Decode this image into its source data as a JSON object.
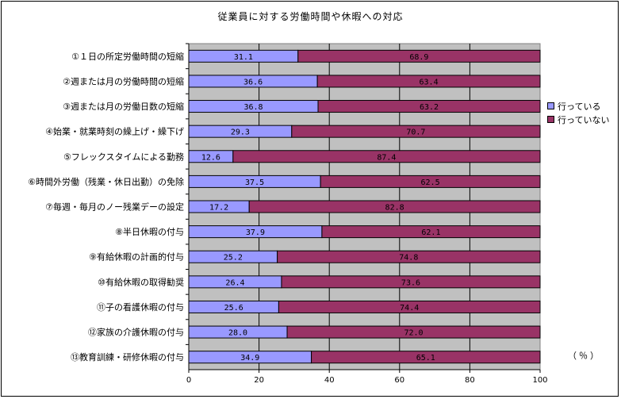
{
  "chart_data": {
    "type": "bar",
    "stacked": true,
    "orientation": "horizontal",
    "title": "従業員に対する労働時間や休暇への対応",
    "unit_label": "（％）",
    "categories": [
      "①１日の所定労働時間の短縮",
      "②週または月の労働時間の短縮",
      "③週または月の労働日数の短縮",
      "④始業・就業時刻の繰上げ・繰下げ",
      "⑤フレックスタイムによる勤務",
      "⑥時間外労働（残業・休日出勤）の免除",
      "⑦毎週・毎月のノー残業デーの設定",
      "⑧半日休暇の付与",
      "⑨有給休暇の計画的付与",
      "⑩有給休暇の取得勧奨",
      "⑪子の看護休暇の付与",
      "⑫家族の介護休暇の付与",
      "⑬教育訓練・研修休暇の付与"
    ],
    "series": [
      {
        "name": "行っている",
        "color": "#9999ff",
        "values": [
          31.1,
          36.6,
          36.8,
          29.3,
          12.6,
          37.5,
          17.2,
          37.9,
          25.2,
          26.4,
          25.6,
          28.0,
          34.9
        ],
        "labels": [
          "31.1",
          "36.6",
          "36.8",
          "29.3",
          "12.6",
          "37.5",
          "17.2",
          "37.9",
          "25.2",
          "26.4",
          "25.6",
          "28.0",
          "34.9"
        ]
      },
      {
        "name": "行っていない",
        "color": "#993366",
        "values": [
          68.9,
          63.4,
          63.2,
          70.7,
          87.4,
          62.5,
          82.8,
          62.1,
          74.8,
          73.6,
          74.4,
          72.0,
          65.1
        ],
        "labels": [
          "68.9",
          "63.4",
          "63.2",
          "70.7",
          "87.4",
          "62.5",
          "82.8",
          "62.1",
          "74.8",
          "73.6",
          "74.4",
          "72.0",
          "65.1"
        ]
      }
    ],
    "xlim": [
      0,
      100
    ],
    "xticks": [
      "0",
      "20",
      "40",
      "60",
      "80",
      "100"
    ],
    "plot_background": "#c0c0c0",
    "grid": true,
    "legend_position": "right"
  }
}
